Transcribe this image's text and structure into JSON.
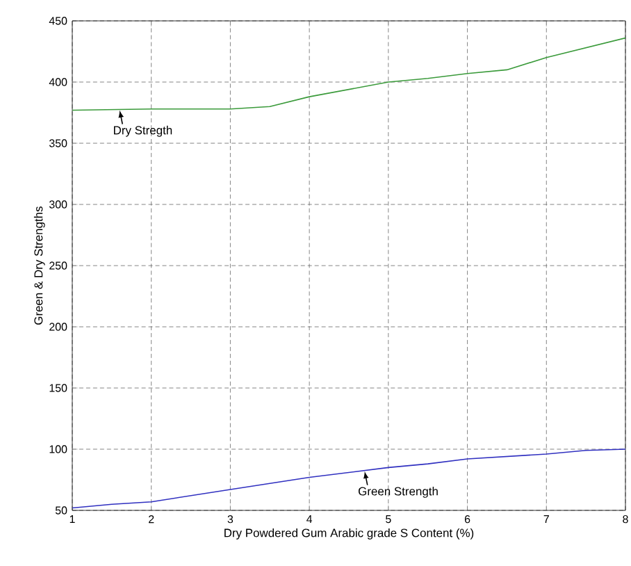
{
  "chart_data": {
    "type": "line",
    "xlabel": "Dry Powdered Gum Arabic grade S Content (%)",
    "ylabel": "Green & Dry Strengths",
    "series": [
      {
        "color": "#3a9a3a",
        "x": [
          1,
          2,
          3,
          3.5,
          4,
          5,
          5.5,
          6,
          6.5,
          7,
          8
        ],
        "values": [
          377,
          378,
          378,
          380,
          388,
          400,
          403,
          407,
          410,
          420,
          436
        ]
      },
      {
        "color": "#3030c0",
        "x": [
          1,
          1.5,
          2,
          3,
          3.5,
          4,
          5,
          5.5,
          6,
          7,
          7.5,
          8
        ],
        "values": [
          52,
          55,
          57,
          67,
          72,
          77,
          85,
          88,
          92,
          96,
          99,
          100
        ]
      }
    ],
    "annotations": [
      {
        "text": "Dry Stregth",
        "x": 1.6,
        "y": 377
      },
      {
        "text": "Green Strength",
        "x": 4.7,
        "y": 82
      }
    ],
    "xlim": [
      1,
      8
    ],
    "ylim": [
      50,
      450
    ],
    "xticks": [
      1,
      2,
      3,
      4,
      5,
      6,
      7,
      8
    ],
    "yticks": [
      50,
      100,
      150,
      200,
      250,
      300,
      350,
      400,
      450
    ],
    "grid": true,
    "marker": "none",
    "line_style": "solid"
  }
}
